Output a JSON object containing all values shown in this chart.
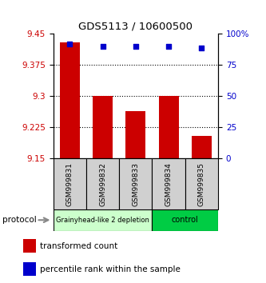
{
  "title": "GDS5113 / 10600500",
  "samples": [
    "GSM999831",
    "GSM999832",
    "GSM999833",
    "GSM999834",
    "GSM999835"
  ],
  "bar_values": [
    9.43,
    9.3,
    9.265,
    9.3,
    9.205
  ],
  "percentile_values": [
    92,
    90,
    90,
    90,
    89
  ],
  "ylim_left": [
    9.15,
    9.45
  ],
  "ylim_right": [
    0,
    100
  ],
  "yticks_left": [
    9.15,
    9.225,
    9.3,
    9.375,
    9.45
  ],
  "yticks_right": [
    0,
    25,
    50,
    75,
    100
  ],
  "bar_color": "#cc0000",
  "dot_color": "#0000cc",
  "group1_samples": [
    0,
    1,
    2
  ],
  "group2_samples": [
    3,
    4
  ],
  "group1_label": "Grainyhead-like 2 depletion",
  "group2_label": "control",
  "group1_color": "#ccffcc",
  "group2_color": "#00cc44",
  "protocol_label": "protocol",
  "legend_red_label": "transformed count",
  "legend_blue_label": "percentile rank within the sample",
  "tick_label_color_left": "#cc0000",
  "tick_label_color_right": "#0000cc",
  "bar_bottom": 9.15,
  "dotted_grid_lines": [
    9.375,
    9.3,
    9.225
  ],
  "background_color": "#ffffff"
}
